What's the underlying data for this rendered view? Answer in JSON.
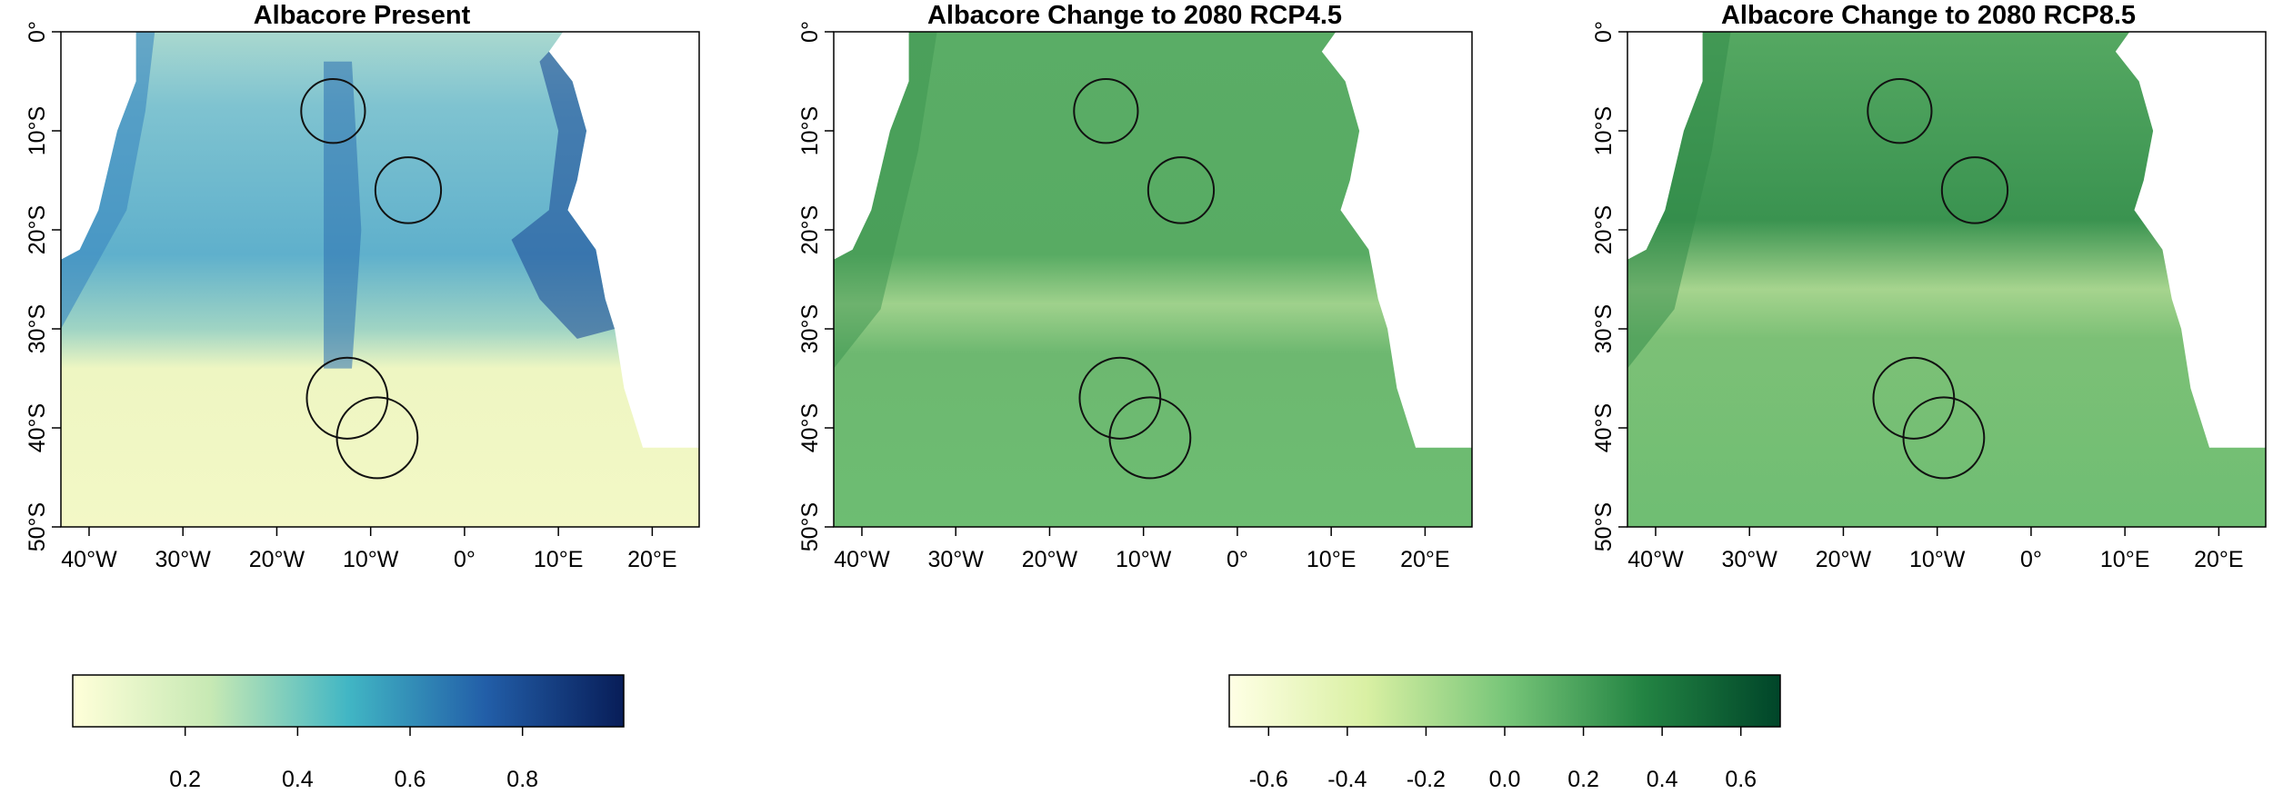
{
  "panels": [
    {
      "title": "Albacore Present"
    },
    {
      "title": "Albacore Change to 2080 RCP4.5"
    },
    {
      "title": "Albacore Change to 2080 RCP8.5"
    }
  ],
  "map": {
    "xlim": [
      -43,
      25
    ],
    "ylim": [
      -50,
      0
    ],
    "xticks": [
      {
        "value": -40,
        "label": "40°W"
      },
      {
        "value": -30,
        "label": "30°W"
      },
      {
        "value": -20,
        "label": "20°W"
      },
      {
        "value": -10,
        "label": "10°W"
      },
      {
        "value": 0,
        "label": "0°"
      },
      {
        "value": 10,
        "label": "10°E"
      },
      {
        "value": 20,
        "label": "20°E"
      }
    ],
    "yticks": [
      {
        "value": 0,
        "label": "0°"
      },
      {
        "value": -10,
        "label": "10°S"
      },
      {
        "value": -20,
        "label": "20°S"
      },
      {
        "value": -30,
        "label": "30°S"
      },
      {
        "value": -40,
        "label": "40°S"
      },
      {
        "value": -50,
        "label": "50°S"
      }
    ]
  },
  "colorbars": [
    {
      "lim": [
        0,
        0.98
      ],
      "ticks": [
        0.2,
        0.4,
        0.6,
        0.8
      ],
      "colors": [
        "#ffffd9",
        "#c7e9b4",
        "#41b6c4",
        "#225ea8",
        "#081d58"
      ]
    },
    {
      "lim": [
        -0.7,
        0.7
      ],
      "ticks": [
        -0.6,
        -0.4,
        -0.2,
        {
          "value": 0,
          "label": "0.0"
        },
        0.2,
        0.4,
        0.6
      ],
      "colors": [
        "#ffffe5",
        "#d9f0a3",
        "#78c679",
        "#238443",
        "#004529"
      ]
    }
  ]
}
